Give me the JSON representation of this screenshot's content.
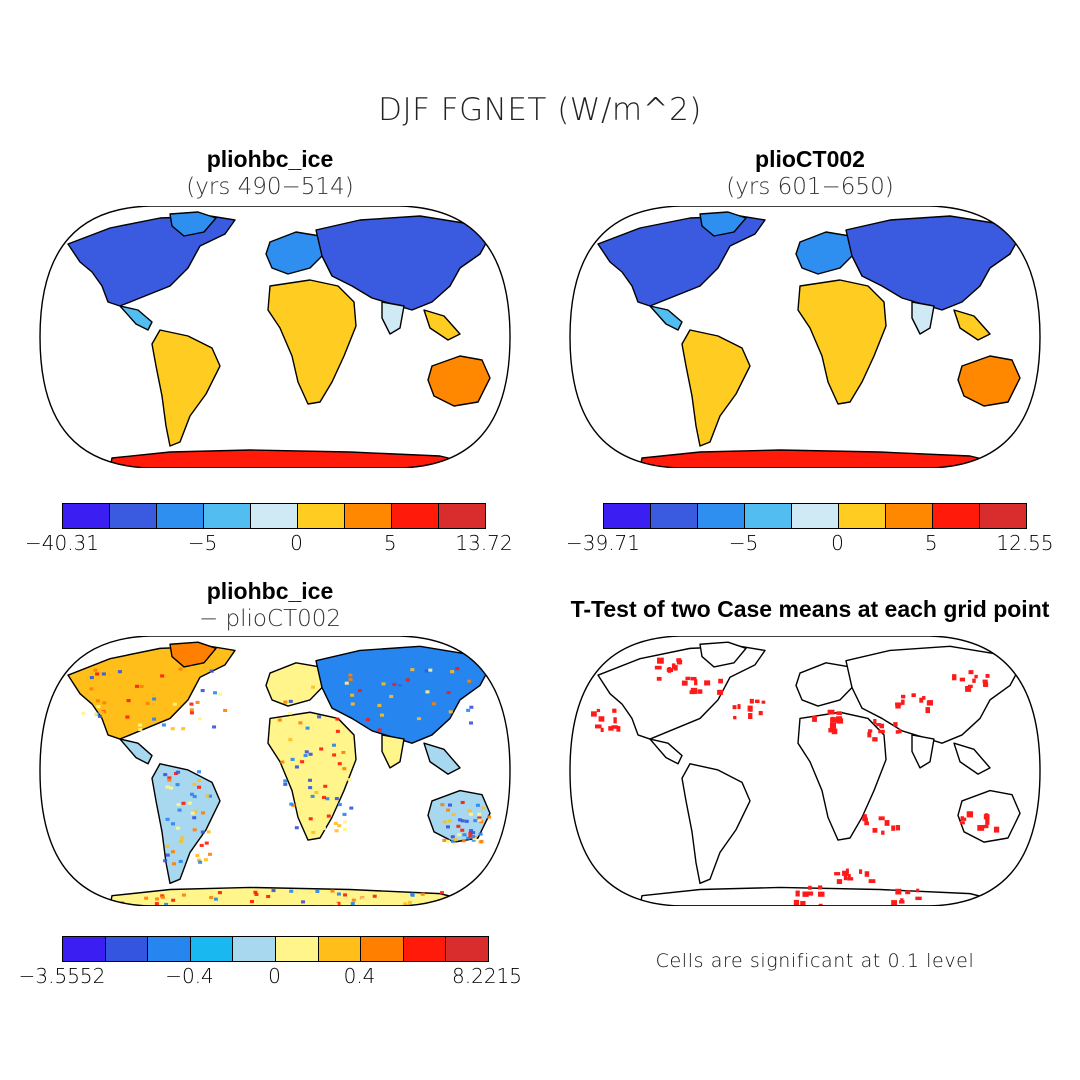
{
  "title": "DJF FGNET (W/m^2)",
  "panels": [
    {
      "title": "pliohbc_ice",
      "subtitle": "(yrs 490−514)"
    },
    {
      "title": "plioCT002",
      "subtitle": "(yrs 601−650)"
    },
    {
      "title": "pliohbc_ice",
      "subtitle": "− plioCT002"
    },
    {
      "title": "T-Test of two Case means at each grid point",
      "subtitle": ""
    }
  ],
  "colorbars": [
    {
      "colors": [
        "#3a1ef2",
        "#3a5ae0",
        "#2e8ff0",
        "#52bdf0",
        "#cfe9f5",
        "#ffcc22",
        "#ff8800",
        "#ff1a0a",
        "#d92d2d"
      ],
      "labels": [
        "−40.31",
        "−5",
        "0",
        "5",
        "13.72"
      ],
      "label_at": [
        0,
        3,
        5,
        7,
        9
      ]
    },
    {
      "colors": [
        "#3a1ef2",
        "#3a5ae0",
        "#2e8ff0",
        "#52bdf0",
        "#cfe9f5",
        "#ffcc22",
        "#ff8800",
        "#ff1a0a",
        "#d92d2d"
      ],
      "labels": [
        "−39.71",
        "−5",
        "0",
        "5",
        "12.55"
      ],
      "label_at": [
        0,
        3,
        5,
        7,
        9
      ]
    },
    {
      "colors": [
        "#3a1ef2",
        "#3455e0",
        "#2785f0",
        "#1ab8f0",
        "#a8d8f0",
        "#fff58a",
        "#ffbe1a",
        "#ff7f00",
        "#ff1a0a",
        "#d92d2d"
      ],
      "labels": [
        "−3.5552",
        "−0.4",
        "0",
        "0.4",
        "8.2215"
      ],
      "label_at": [
        0,
        3,
        5,
        7,
        10
      ]
    }
  ],
  "note": "Cells are significant at 0.1 level",
  "colors": {
    "land_cold": "#3a1ef2",
    "land_warm": "#d92d2d",
    "significant": "#ff1a1a"
  }
}
